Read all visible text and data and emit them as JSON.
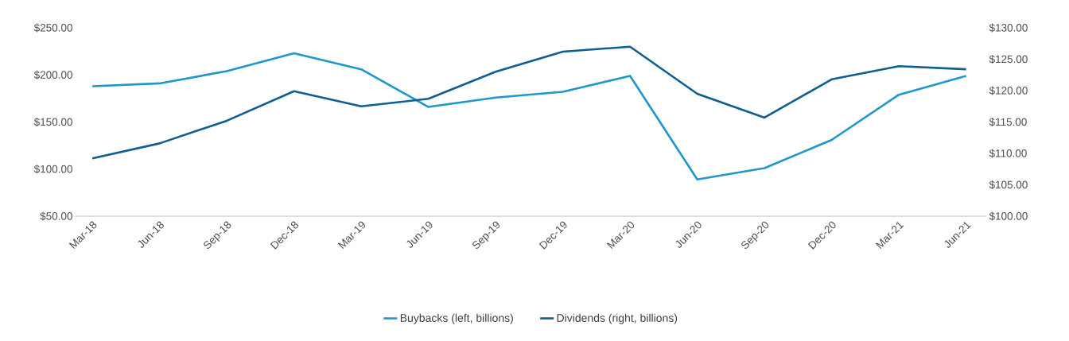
{
  "chart_data": {
    "type": "line",
    "categories": [
      "Mar-18",
      "Jun-18",
      "Sep-18",
      "Dec-18",
      "Mar-19",
      "Jun-19",
      "Sep-19",
      "Dec-19",
      "Mar-20",
      "Jun-20",
      "Sep-20",
      "Dec-20",
      "Mar-21",
      "Jun-21"
    ],
    "series": [
      {
        "name": "Buybacks (left, billions)",
        "color": "#1f96cd",
        "values": [
          188,
          191,
          204,
          223,
          206,
          166,
          176,
          182,
          199,
          89,
          101,
          131,
          179,
          199
        ]
      },
      {
        "name": "Dividends (right, billions)",
        "color": "#0e5f90",
        "axis": "y2",
        "values": [
          109.2,
          111.6,
          115.2,
          119.9,
          117.5,
          118.7,
          123.0,
          126.2,
          127.0,
          119.5,
          115.7,
          121.8,
          123.9,
          123.4
        ]
      }
    ],
    "ylim": [
      50,
      250
    ],
    "yticks": [
      {
        "value": 50,
        "label": "$50.00"
      },
      {
        "value": 100,
        "label": "$100.00"
      },
      {
        "value": 150,
        "label": "$150.00"
      },
      {
        "value": 200,
        "label": "$200.00"
      },
      {
        "value": 250,
        "label": "$250.00"
      }
    ],
    "y2lim": [
      100,
      130
    ],
    "y2ticks": [
      {
        "value": 100,
        "label": "$100.00"
      },
      {
        "value": 105,
        "label": "$105.00"
      },
      {
        "value": 110,
        "label": "$110.00"
      },
      {
        "value": 115,
        "label": "$115.00"
      },
      {
        "value": 120,
        "label": "$120.00"
      },
      {
        "value": 125,
        "label": "$125.00"
      },
      {
        "value": 130,
        "label": "$130.00"
      }
    ],
    "legend": "bottom"
  }
}
